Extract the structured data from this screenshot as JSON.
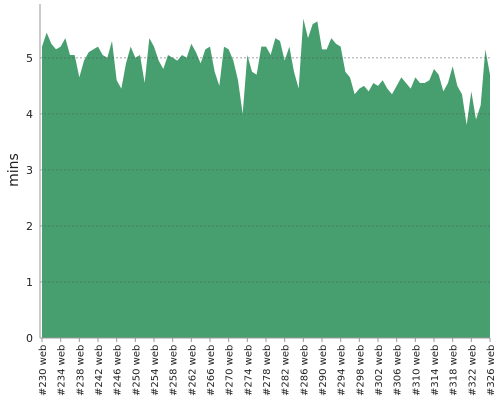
{
  "chart_data": {
    "type": "area",
    "y_label": "mins",
    "color": "#479e6e",
    "grid": true,
    "ylim": [
      0,
      5.96
    ],
    "yticks": [
      0,
      1,
      2,
      3,
      4,
      5
    ],
    "categories": [
      "#230 web",
      null,
      null,
      null,
      "#234 web",
      null,
      null,
      null,
      "#238 web",
      null,
      null,
      null,
      "#242 web",
      null,
      null,
      null,
      "#246 web",
      null,
      null,
      null,
      "#250 web",
      null,
      null,
      null,
      "#254 web",
      null,
      null,
      null,
      "#258 web",
      null,
      null,
      null,
      "#262 web",
      null,
      null,
      null,
      "#266 web",
      null,
      null,
      null,
      "#270 web",
      null,
      null,
      null,
      "#274 web",
      null,
      null,
      null,
      "#278 web",
      null,
      null,
      null,
      "#282 web",
      null,
      null,
      null,
      "#286 web",
      null,
      null,
      null,
      "#290 web",
      null,
      null,
      null,
      "#294 web",
      null,
      null,
      null,
      "#298 web",
      null,
      null,
      null,
      "#302 web",
      null,
      null,
      null,
      "#306 web",
      null,
      null,
      null,
      "#310 web",
      null,
      null,
      null,
      "#314 web",
      null,
      null,
      null,
      "#318 web",
      null,
      null,
      null,
      "#322 web",
      null,
      null,
      null,
      "#326 web"
    ],
    "values": [
      5.2,
      5.45,
      5.25,
      5.15,
      5.2,
      5.35,
      5.05,
      5.05,
      4.65,
      4.95,
      5.1,
      5.15,
      5.2,
      5.05,
      5.0,
      5.3,
      4.6,
      4.45,
      4.9,
      5.2,
      5.0,
      5.05,
      4.55,
      5.35,
      5.2,
      4.95,
      4.8,
      5.05,
      5.0,
      4.95,
      5.05,
      5.0,
      5.25,
      5.1,
      4.9,
      5.15,
      5.2,
      4.75,
      4.5,
      5.2,
      5.15,
      4.95,
      4.6,
      4.0,
      5.05,
      4.75,
      4.7,
      5.2,
      5.2,
      5.05,
      5.35,
      5.3,
      4.95,
      5.2,
      4.75,
      4.45,
      5.7,
      5.35,
      5.6,
      5.65,
      5.15,
      5.15,
      5.35,
      5.25,
      5.2,
      4.75,
      4.65,
      4.35,
      4.45,
      4.5,
      4.4,
      4.55,
      4.5,
      4.6,
      4.45,
      4.35,
      4.5,
      4.65,
      4.55,
      4.45,
      4.65,
      4.55,
      4.55,
      4.6,
      4.8,
      4.7,
      4.4,
      4.55,
      4.85,
      4.5,
      4.35,
      3.8,
      4.4,
      3.9,
      4.15,
      5.15,
      4.7
    ]
  }
}
